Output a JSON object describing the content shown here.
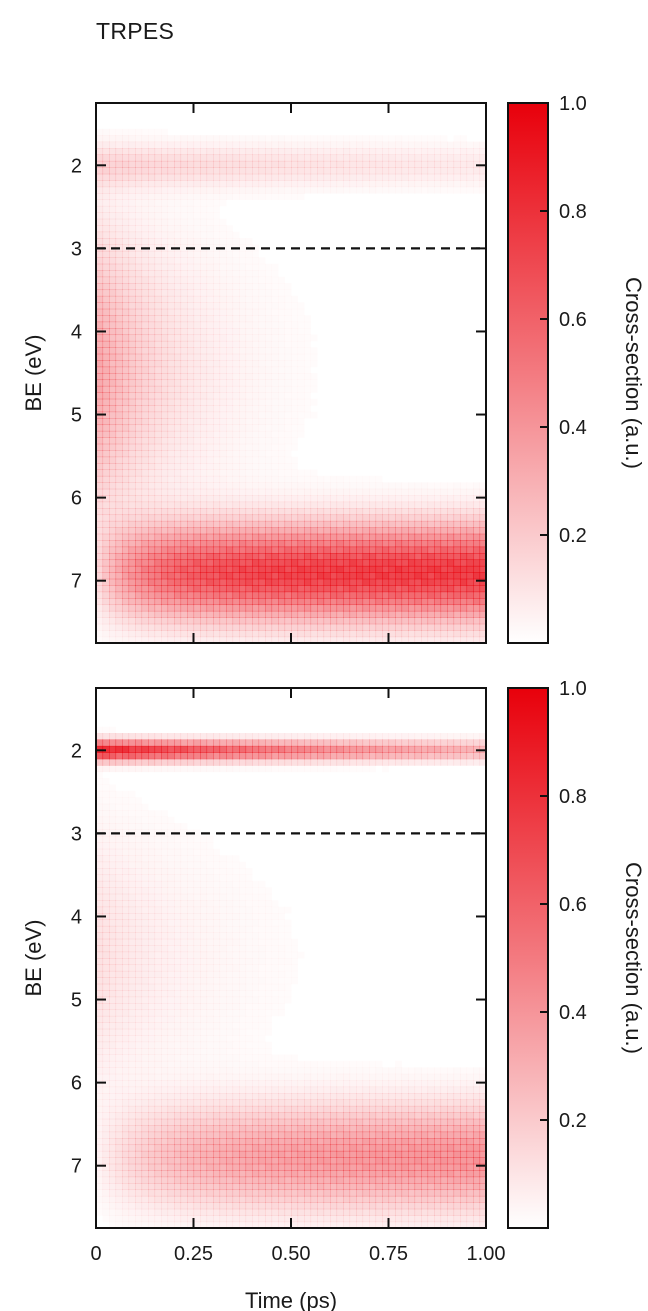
{
  "figure_title": "TRPES",
  "colors": {
    "accent": "#e8000b",
    "axis": "#111111"
  },
  "chart_data": [
    {
      "type": "heatmap",
      "panel": "top",
      "title": "",
      "xlabel": "Time (ps)",
      "ylabel": "BE (eV)",
      "xlim": [
        0,
        1.0
      ],
      "ylim": [
        7.75,
        1.25
      ],
      "x_ticks": [
        0,
        0.25,
        0.5,
        0.75,
        1.0
      ],
      "x_tick_labels": [],
      "y_ticks": [
        2,
        3,
        4,
        5,
        6,
        7
      ],
      "y_tick_labels": [
        "2",
        "3",
        "4",
        "5",
        "6",
        "7"
      ],
      "threshold_line_BE": 3,
      "colorbar": {
        "label": "Cross-section (a.u.)",
        "range": [
          0,
          1.0
        ],
        "ticks": [
          0.2,
          0.4,
          0.6,
          0.8,
          1.0
        ],
        "tick_labels": [
          "0.2",
          "0.4",
          "0.6",
          "0.8",
          "1.0"
        ]
      },
      "intensity_features": [
        {
          "description": "band near BE 2 eV",
          "center_BE": 2.0,
          "width_BE": 0.25,
          "t_start": 0.0,
          "decay_ps": 1.5,
          "amplitude": 0.15
        },
        {
          "description": "early-time broad signal",
          "center_BE": 4.5,
          "width_BE": 1.6,
          "t_start": 0.0,
          "decay_ps": 0.18,
          "amplitude": 0.35
        },
        {
          "description": "band growing near BE 6.8-7 eV",
          "center_BE": 6.9,
          "width_BE": 0.55,
          "t_start": 0.0,
          "rise_ps": 0.15,
          "amplitude": 0.75
        }
      ]
    },
    {
      "type": "heatmap",
      "panel": "bottom",
      "title": "",
      "xlabel": "Time (ps)",
      "ylabel": "BE (eV)",
      "xlim": [
        0,
        1.0
      ],
      "ylim": [
        7.75,
        1.25
      ],
      "x_ticks": [
        0,
        0.25,
        0.5,
        0.75,
        1.0
      ],
      "x_tick_labels": [
        "0",
        "0.25",
        "0.50",
        "0.75",
        "1.00"
      ],
      "y_ticks": [
        2,
        3,
        4,
        5,
        6,
        7
      ],
      "y_tick_labels": [
        "2",
        "3",
        "4",
        "5",
        "6",
        "7"
      ],
      "threshold_line_BE": 3,
      "colorbar": {
        "label": "Cross-section (a.u.)",
        "range": [
          0,
          1.0
        ],
        "ticks": [
          0.2,
          0.4,
          0.6,
          0.8,
          1.0
        ],
        "tick_labels": [
          "0.2",
          "0.4",
          "0.6",
          "0.8",
          "1.0"
        ]
      },
      "intensity_features": [
        {
          "description": "sharp band near BE 2 eV",
          "center_BE": 2.0,
          "width_BE": 0.12,
          "t_start": 0.0,
          "decay_ps": 0.9,
          "amplitude": 0.85
        },
        {
          "description": "weak early-time signal",
          "center_BE": 4.5,
          "width_BE": 1.5,
          "t_start": 0.0,
          "decay_ps": 0.25,
          "amplitude": 0.12
        },
        {
          "description": "band growing near BE 6.8-7 eV",
          "center_BE": 6.9,
          "width_BE": 0.6,
          "t_start": 0.0,
          "rise_ps": 0.25,
          "amplitude": 0.42
        }
      ]
    }
  ]
}
